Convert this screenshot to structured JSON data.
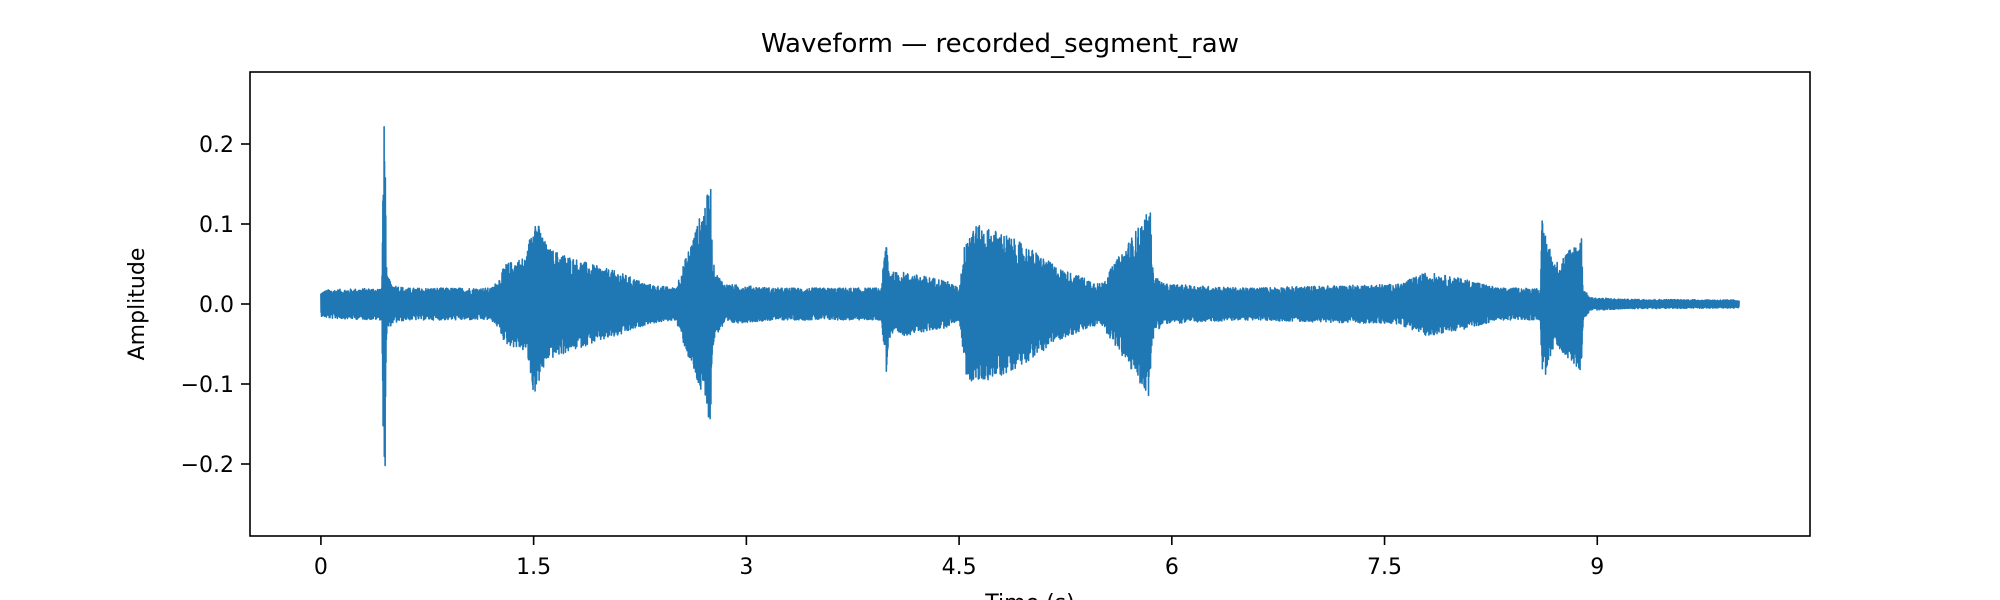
{
  "chart_data": {
    "type": "line",
    "title": "Waveform — recorded_segment_raw",
    "xlabel": "Time (s)",
    "ylabel": "Amplitude",
    "xlim": [
      -0.5,
      10.5
    ],
    "ylim": [
      -0.29,
      0.29
    ],
    "x_ticks": [
      0,
      1.5,
      3,
      4.5,
      6,
      7.5,
      9
    ],
    "x_tick_labels": [
      "0",
      "1.5",
      "3",
      "4.5",
      "6",
      "7.5",
      "9"
    ],
    "y_ticks": [
      -0.2,
      -0.1,
      0.0,
      0.1,
      0.2
    ],
    "y_tick_labels": [
      "−0.2",
      "−0.1",
      "0.0",
      "0.1",
      "0.2"
    ],
    "grid": false,
    "series": [
      {
        "color": "#1f77b4",
        "duration_s": 10.0,
        "envelope": {
          "x": [
            0.0,
            0.05,
            0.43,
            0.44,
            0.45,
            0.46,
            0.47,
            0.5,
            0.6,
            1.2,
            1.25,
            1.3,
            1.45,
            1.5,
            1.6,
            1.9,
            2.1,
            2.3,
            2.5,
            2.75,
            2.76,
            2.78,
            2.85,
            3.2,
            3.95,
            3.99,
            4.0,
            4.02,
            4.1,
            4.4,
            4.5,
            4.55,
            4.6,
            4.8,
            5.0,
            5.2,
            5.5,
            5.85,
            5.86,
            5.88,
            5.95,
            6.5,
            7.6,
            7.8,
            8.1,
            8.3,
            8.6,
            8.61,
            8.7,
            8.89,
            8.9,
            8.95,
            9.2,
            10.0
          ],
          "amplitude": [
            0.015,
            0.018,
            0.02,
            0.2,
            0.265,
            0.05,
            0.035,
            0.025,
            0.02,
            0.02,
            0.03,
            0.05,
            0.06,
            0.115,
            0.07,
            0.05,
            0.04,
            0.025,
            0.02,
            0.15,
            0.06,
            0.04,
            0.025,
            0.02,
            0.02,
            0.09,
            0.05,
            0.04,
            0.04,
            0.03,
            0.02,
            0.09,
            0.1,
            0.09,
            0.07,
            0.045,
            0.025,
            0.12,
            0.05,
            0.035,
            0.025,
            0.02,
            0.025,
            0.04,
            0.03,
            0.02,
            0.02,
            0.105,
            0.05,
            0.085,
            0.02,
            0.008,
            0.006,
            0.005
          ]
        }
      }
    ]
  }
}
